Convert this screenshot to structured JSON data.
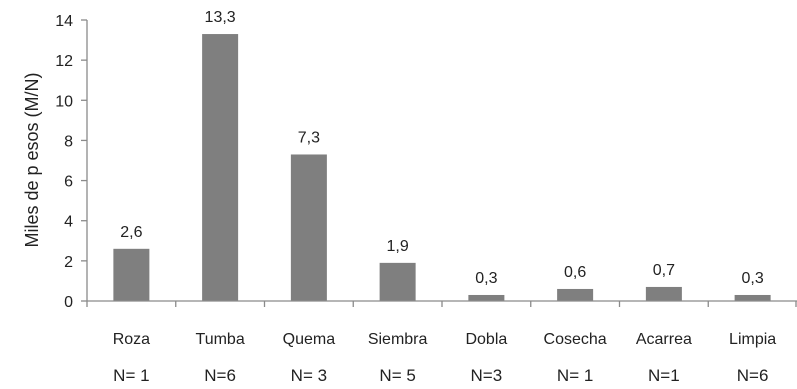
{
  "chart_data": {
    "type": "bar",
    "categories": [
      "Roza",
      "Tumba",
      "Quema",
      "Siembra",
      "Dobla",
      "Cosecha",
      "Acarrea",
      "Limpia"
    ],
    "sample_sizes": [
      "N= 1",
      "N=6",
      "N= 3",
      "N= 5",
      "N=3",
      "N= 1",
      "N=1",
      "N=6"
    ],
    "values": [
      2.6,
      13.3,
      7.3,
      1.9,
      0.3,
      0.6,
      0.7,
      0.3
    ],
    "data_labels": [
      "2,6",
      "13,3",
      "7,3",
      "1,9",
      "0,3",
      "0,6",
      "0,7",
      "0,3"
    ],
    "title": "",
    "xlabel": "",
    "ylabel": "Miles de p esos (M/N)",
    "ylim": [
      0,
      14
    ],
    "yticks": [
      0,
      2,
      4,
      6,
      8,
      10,
      12,
      14
    ],
    "grid": false,
    "bar_color": "#7f7f7f"
  }
}
